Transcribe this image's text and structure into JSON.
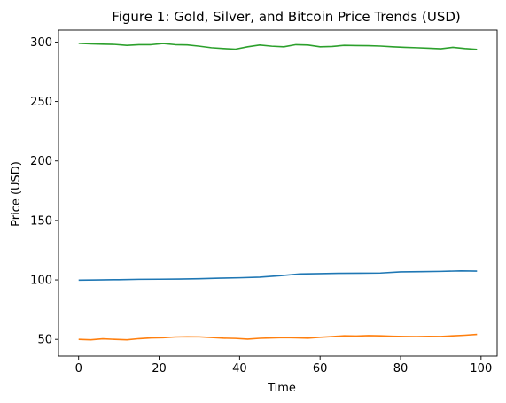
{
  "chart_data": {
    "type": "line",
    "title": "Figure 1: Gold, Silver, and Bitcoin Price Trends (USD)",
    "xlabel": "Time",
    "ylabel": "Price (USD)",
    "xlim": [
      -5,
      104
    ],
    "ylim": [
      36,
      310
    ],
    "xticks": [
      0,
      20,
      40,
      60,
      80,
      100
    ],
    "yticks": [
      50,
      100,
      150,
      200,
      250,
      300
    ],
    "grid": false,
    "legend": "none",
    "series": [
      {
        "color": "#1f77b4",
        "x": [
          0,
          5,
          10,
          15,
          20,
          25,
          30,
          35,
          40,
          45,
          50,
          55,
          60,
          65,
          70,
          75,
          80,
          85,
          90,
          95,
          99
        ],
        "values": [
          99.8,
          100.0,
          100.2,
          100.5,
          100.6,
          100.7,
          101.0,
          101.5,
          101.8,
          102.3,
          103.5,
          105.0,
          105.3,
          105.6,
          105.7,
          105.8,
          106.8,
          107.0,
          107.2,
          107.6,
          107.4
        ]
      },
      {
        "color": "#ff7f0e",
        "x": [
          0,
          3,
          6,
          9,
          12,
          15,
          18,
          21,
          24,
          27,
          30,
          33,
          36,
          39,
          42,
          45,
          48,
          51,
          54,
          57,
          60,
          63,
          66,
          69,
          72,
          75,
          78,
          81,
          84,
          87,
          90,
          93,
          96,
          99
        ],
        "values": [
          50.0,
          49.6,
          50.5,
          50.0,
          49.6,
          50.6,
          51.2,
          51.4,
          52.0,
          52.2,
          52.1,
          51.6,
          51.0,
          50.8,
          50.2,
          50.9,
          51.2,
          51.5,
          51.3,
          51.0,
          51.8,
          52.3,
          53.0,
          52.8,
          53.2,
          53.0,
          52.6,
          52.4,
          52.3,
          52.5,
          52.4,
          53.0,
          53.5,
          54.2
        ]
      },
      {
        "color": "#2ca02c",
        "x": [
          0,
          3,
          6,
          9,
          12,
          15,
          18,
          21,
          24,
          27,
          30,
          33,
          36,
          39,
          42,
          45,
          48,
          51,
          54,
          57,
          60,
          63,
          66,
          69,
          72,
          75,
          78,
          81,
          84,
          87,
          90,
          93,
          96,
          99
        ],
        "values": [
          299.0,
          298.5,
          298.2,
          298.0,
          297.2,
          297.8,
          297.8,
          298.8,
          297.8,
          297.6,
          296.5,
          295.2,
          294.5,
          294.0,
          296.0,
          297.5,
          296.5,
          296.0,
          297.8,
          297.5,
          296.0,
          296.3,
          297.2,
          297.0,
          296.9,
          296.6,
          296.0,
          295.5,
          295.2,
          294.8,
          294.3,
          295.5,
          294.5,
          293.8
        ]
      }
    ]
  }
}
